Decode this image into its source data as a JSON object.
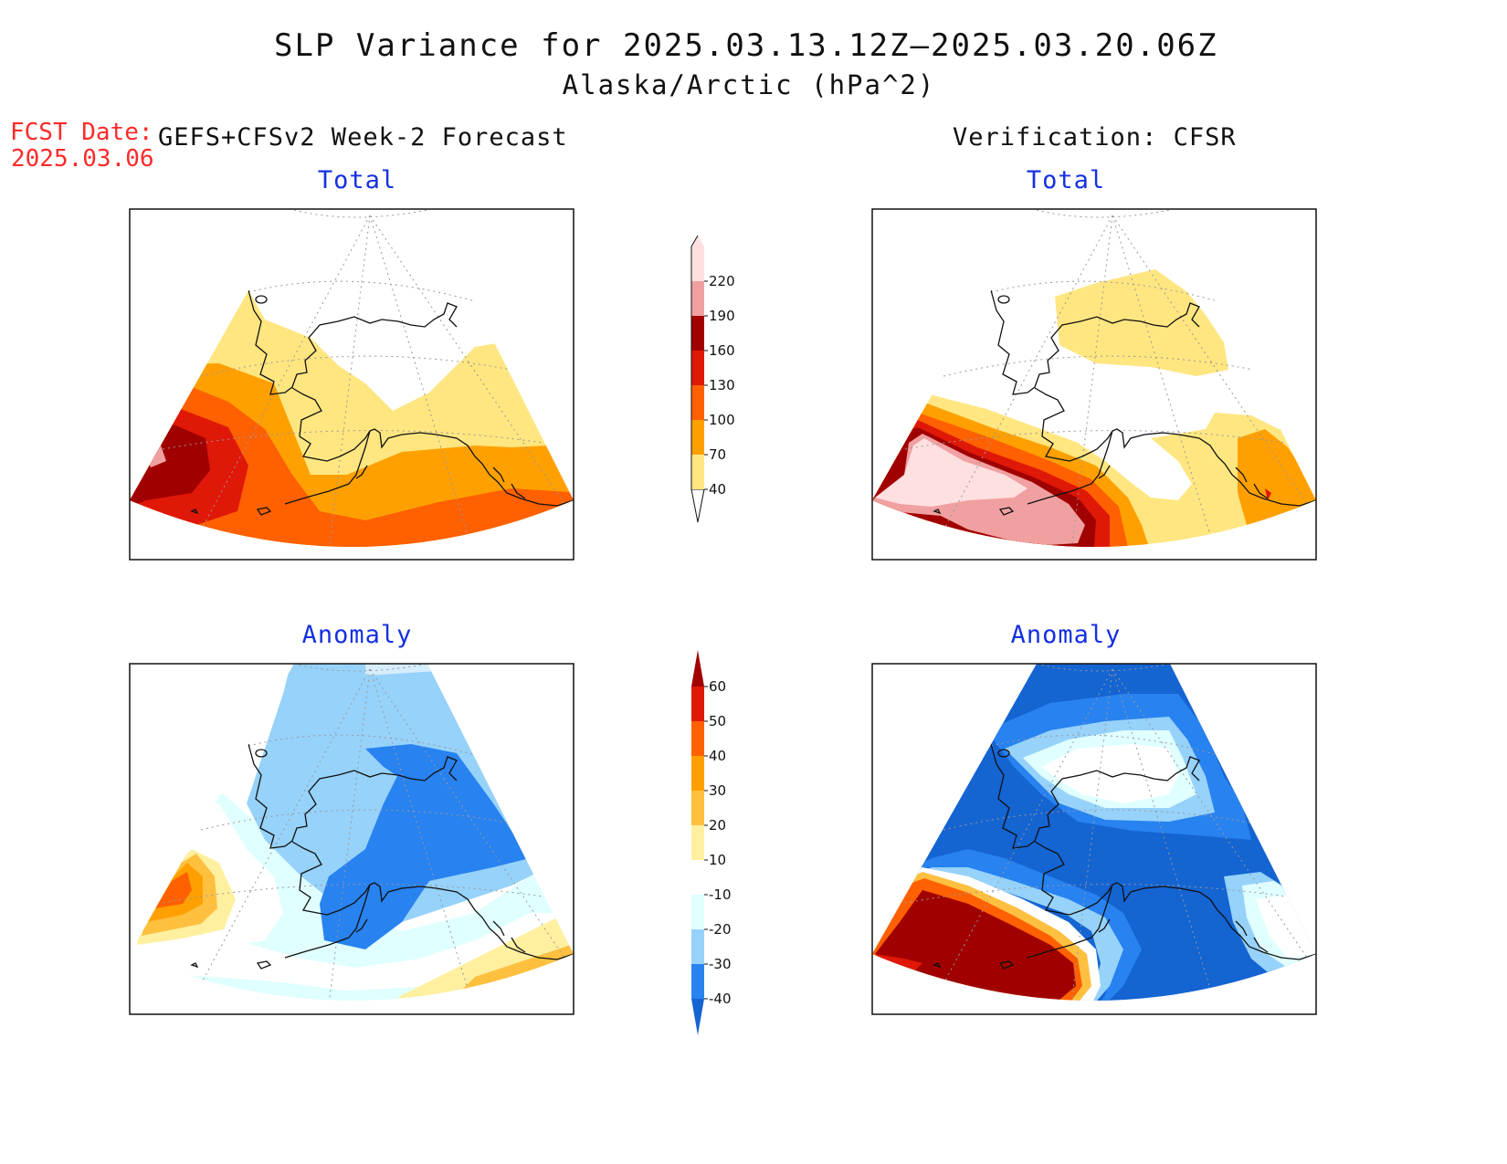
{
  "header": {
    "title": "SLP Variance for 2025.03.13.12Z—2025.03.20.06Z",
    "subtitle": "Alaska/Arctic (hPa^2)",
    "fcst_date_label": "FCST Date:",
    "fcst_date_value": "2025.03.06",
    "forecast_heading": "GEFS+CFSv2 Week-2 Forecast",
    "verification_heading": "Verification: CFSR"
  },
  "panels": {
    "forecast_total": {
      "title": "Total"
    },
    "verification_total": {
      "title": "Total"
    },
    "forecast_anomaly": {
      "title": "Anomaly"
    },
    "verification_anomaly": {
      "title": "Anomaly"
    }
  },
  "colorbars": {
    "total": {
      "labels": [
        "40",
        "70",
        "100",
        "130",
        "160",
        "190",
        "220"
      ],
      "colors": [
        "#ffe680",
        "#ffa000",
        "#ff6000",
        "#e01808",
        "#a00000",
        "#f0a0a0",
        "#ffe0e0"
      ]
    },
    "anomaly": {
      "labels": [
        "-40",
        "-30",
        "-20",
        "-10",
        "10",
        "20",
        "30",
        "40",
        "50",
        "60"
      ],
      "colors": [
        "#1464d2",
        "#2882f0",
        "#96d2fa",
        "#e0ffff",
        "#ffffff",
        "#fff0a0",
        "#ffc040",
        "#ffa000",
        "#ff6000",
        "#e01808",
        "#a00000"
      ]
    }
  }
}
